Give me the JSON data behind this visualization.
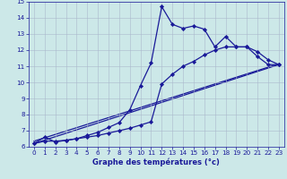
{
  "xlabel": "Graphe des températures (°c)",
  "xlim": [
    -0.5,
    23.5
  ],
  "ylim": [
    6,
    15
  ],
  "xticks": [
    0,
    1,
    2,
    3,
    4,
    5,
    6,
    7,
    8,
    9,
    10,
    11,
    12,
    13,
    14,
    15,
    16,
    17,
    18,
    19,
    20,
    21,
    22,
    23
  ],
  "yticks": [
    6,
    7,
    8,
    9,
    10,
    11,
    12,
    13,
    14,
    15
  ],
  "bg_color": "#cce8e8",
  "grid_color": "#aab8cc",
  "line_color": "#1a1a99",
  "line1_x": [
    0,
    1,
    2,
    3,
    4,
    5,
    6,
    7,
    8,
    9,
    10,
    11,
    12,
    13,
    14,
    15,
    16,
    17,
    18,
    19,
    20,
    21,
    22,
    23
  ],
  "line1_y": [
    6.2,
    6.6,
    6.3,
    6.4,
    6.5,
    6.7,
    6.9,
    7.2,
    7.5,
    8.3,
    9.8,
    11.2,
    14.7,
    13.6,
    13.35,
    13.5,
    13.3,
    12.2,
    12.85,
    12.2,
    12.2,
    11.6,
    11.1,
    11.1
  ],
  "line2_x": [
    0,
    1,
    2,
    3,
    4,
    5,
    6,
    7,
    8,
    9,
    10,
    11,
    12,
    13,
    14,
    15,
    16,
    17,
    18,
    19,
    20,
    21,
    22,
    23
  ],
  "line2_y": [
    6.2,
    6.35,
    6.35,
    6.4,
    6.5,
    6.6,
    6.7,
    6.85,
    7.0,
    7.15,
    7.35,
    7.55,
    9.9,
    10.5,
    11.0,
    11.3,
    11.7,
    12.0,
    12.2,
    12.2,
    12.2,
    11.9,
    11.4,
    11.1
  ],
  "line3_y_start": 6.2,
  "line3_y_end": 11.1,
  "line4_y_start": 6.2,
  "line4_y_end": 11.1,
  "x_start": 0,
  "x_end": 23,
  "marker_size": 3,
  "linewidth": 0.9
}
